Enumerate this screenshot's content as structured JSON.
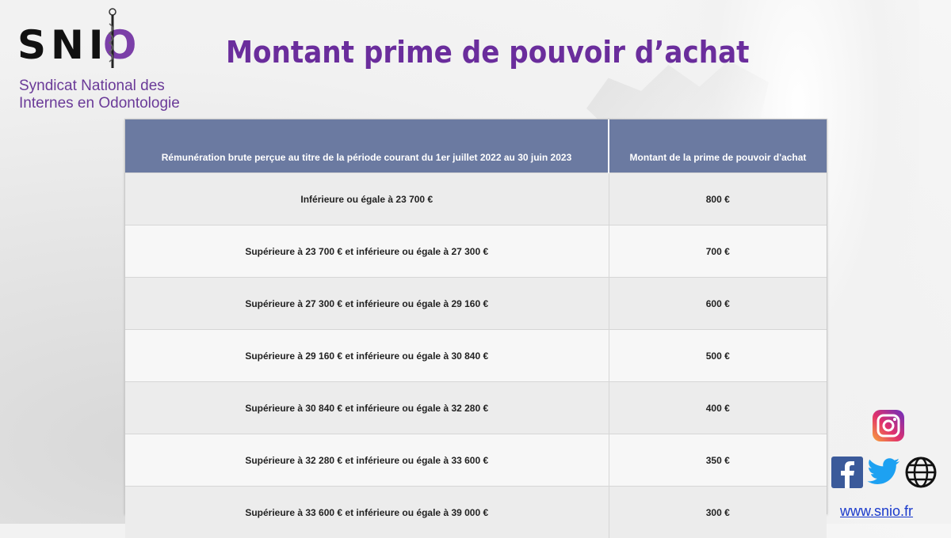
{
  "logo": {
    "mark_letters": [
      "S",
      "N",
      "I",
      "O"
    ],
    "subtitle_line1": "Syndicat National des",
    "subtitle_line2": "Internes en Odontologie"
  },
  "title": "Montant prime de pouvoir d’achat",
  "table": {
    "headers": [
      "Rémunération brute perçue au titre de la période courant du 1er juillet 2022 au 30 juin 2023",
      "Montant de la prime de pouvoir d'achat"
    ],
    "rows": [
      {
        "range": "Inférieure ou égale à 23 700 €",
        "amount": "800 €"
      },
      {
        "range": "Supérieure à 23 700 € et inférieure ou égale à 27 300 €",
        "amount": "700 €"
      },
      {
        "range": "Supérieure à 27 300 € et inférieure ou égale à 29 160 €",
        "amount": "600 €"
      },
      {
        "range": "Supérieure à 29 160 € et inférieure ou égale à 30 840 €",
        "amount": "500 €"
      },
      {
        "range": "Supérieure à 30 840 € et inférieure ou égale à 32 280 €",
        "amount": "400 €"
      },
      {
        "range": "Supérieure à 32 280 € et inférieure ou égale à 33 600 €",
        "amount": "350 €"
      },
      {
        "range": "Supérieure à 33 600 € et inférieure ou égale à 39 000 €",
        "amount": "300 €"
      }
    ]
  },
  "social": {
    "icons": [
      "instagram-icon",
      "facebook-icon",
      "twitter-icon",
      "globe-icon"
    ],
    "url": "www.snio.fr"
  },
  "colors": {
    "title": "#6a2d9c",
    "header_bg": "#6b7aa1",
    "accent_purple": "#7b3fa8",
    "link": "#1a3acc"
  }
}
